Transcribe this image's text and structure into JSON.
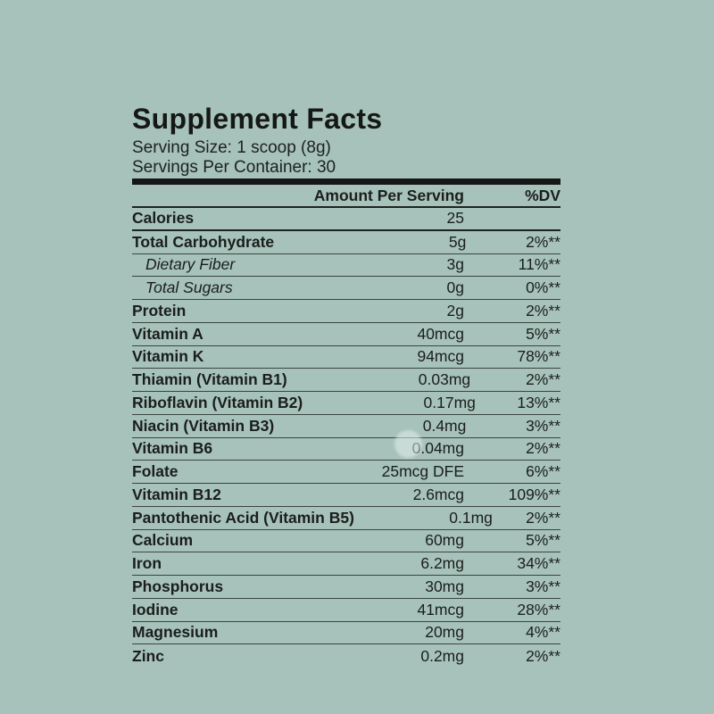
{
  "colors": {
    "background": "#a7c2ba",
    "text": "#1a1e1c",
    "rule_thick": "#141715",
    "rule_thin": "#3a443f"
  },
  "label": {
    "title": "Supplement Facts",
    "serving_size": "Serving Size: 1 scoop (8g)",
    "servings_per_container": "Servings Per Container: 30"
  },
  "table": {
    "amount_header": "Amount Per Serving",
    "dv_header": "%DV",
    "rows": [
      {
        "name": "Calories",
        "amount": "25",
        "dv": "",
        "style": "bold",
        "divider": "thick"
      },
      {
        "name": "Total Carbohydrate",
        "amount": "5g",
        "dv": "2%**",
        "style": "bold",
        "divider": "normal"
      },
      {
        "name": "Dietary Fiber",
        "amount": "3g",
        "dv": "11%**",
        "style": "sub",
        "divider": "normal"
      },
      {
        "name": "Total Sugars",
        "amount": "0g",
        "dv": "0%**",
        "style": "sub",
        "divider": "normal"
      },
      {
        "name": "Protein",
        "amount": "2g",
        "dv": "2%**",
        "style": "bold",
        "divider": "normal"
      },
      {
        "name": "Vitamin A",
        "amount": "40mcg",
        "dv": "5%**",
        "style": "bold",
        "divider": "normal"
      },
      {
        "name": "Vitamin K",
        "amount": "94mcg",
        "dv": "78%**",
        "style": "bold",
        "divider": "normal"
      },
      {
        "name": "Thiamin (Vitamin B1)",
        "amount": "0.03mg",
        "dv": "2%**",
        "style": "bold",
        "divider": "normal"
      },
      {
        "name": "Riboflavin (Vitamin B2)",
        "amount": "0.17mg",
        "dv": "13%**",
        "style": "bold",
        "divider": "normal"
      },
      {
        "name": "Niacin (Vitamin B3)",
        "amount": "0.4mg",
        "dv": "3%**",
        "style": "bold",
        "divider": "normal"
      },
      {
        "name": "Vitamin B6",
        "amount": "0.04mg",
        "dv": "2%**",
        "style": "bold",
        "divider": "normal"
      },
      {
        "name": "Folate",
        "amount": "25mcg DFE",
        "dv": "6%**",
        "style": "bold",
        "divider": "normal"
      },
      {
        "name": "Vitamin B12",
        "amount": "2.6mcg",
        "dv": "109%**",
        "style": "bold",
        "divider": "normal"
      },
      {
        "name": "Pantothenic Acid (Vitamin B5)",
        "amount": "0.1mg",
        "dv": "2%**",
        "style": "bold",
        "divider": "normal"
      },
      {
        "name": "Calcium",
        "amount": "60mg",
        "dv": "5%**",
        "style": "bold",
        "divider": "normal"
      },
      {
        "name": "Iron",
        "amount": "6.2mg",
        "dv": "34%**",
        "style": "bold",
        "divider": "normal"
      },
      {
        "name": "Phosphorus",
        "amount": "30mg",
        "dv": "3%**",
        "style": "bold",
        "divider": "normal"
      },
      {
        "name": "Iodine",
        "amount": "41mcg",
        "dv": "28%**",
        "style": "bold",
        "divider": "normal"
      },
      {
        "name": "Magnesium",
        "amount": "20mg",
        "dv": "4%**",
        "style": "bold",
        "divider": "normal"
      },
      {
        "name": "Zinc",
        "amount": "0.2mg",
        "dv": "2%**",
        "style": "bold",
        "divider": "none"
      }
    ]
  }
}
